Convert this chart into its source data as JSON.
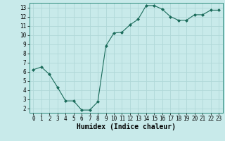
{
  "x": [
    0,
    1,
    2,
    3,
    4,
    5,
    6,
    7,
    8,
    9,
    10,
    11,
    12,
    13,
    14,
    15,
    16,
    17,
    18,
    19,
    20,
    21,
    22,
    23
  ],
  "y": [
    6.2,
    6.5,
    5.7,
    4.3,
    2.8,
    2.8,
    1.8,
    1.8,
    2.7,
    8.8,
    10.2,
    10.3,
    11.1,
    11.7,
    13.2,
    13.2,
    12.8,
    12.0,
    11.6,
    11.6,
    12.2,
    12.2,
    12.7,
    12.7
  ],
  "xlabel": "Humidex (Indice chaleur)",
  "xlim": [
    -0.5,
    23.5
  ],
  "ylim": [
    1.5,
    13.5
  ],
  "yticks": [
    2,
    3,
    4,
    5,
    6,
    7,
    8,
    9,
    10,
    11,
    12,
    13
  ],
  "xticks": [
    0,
    1,
    2,
    3,
    4,
    5,
    6,
    7,
    8,
    9,
    10,
    11,
    12,
    13,
    14,
    15,
    16,
    17,
    18,
    19,
    20,
    21,
    22,
    23
  ],
  "line_color": "#1a6b5a",
  "marker_color": "#1a6b5a",
  "bg_color": "#c8eaea",
  "grid_color": "#b0d8d8",
  "tick_label_fontsize": 5.5,
  "xlabel_fontsize": 7
}
